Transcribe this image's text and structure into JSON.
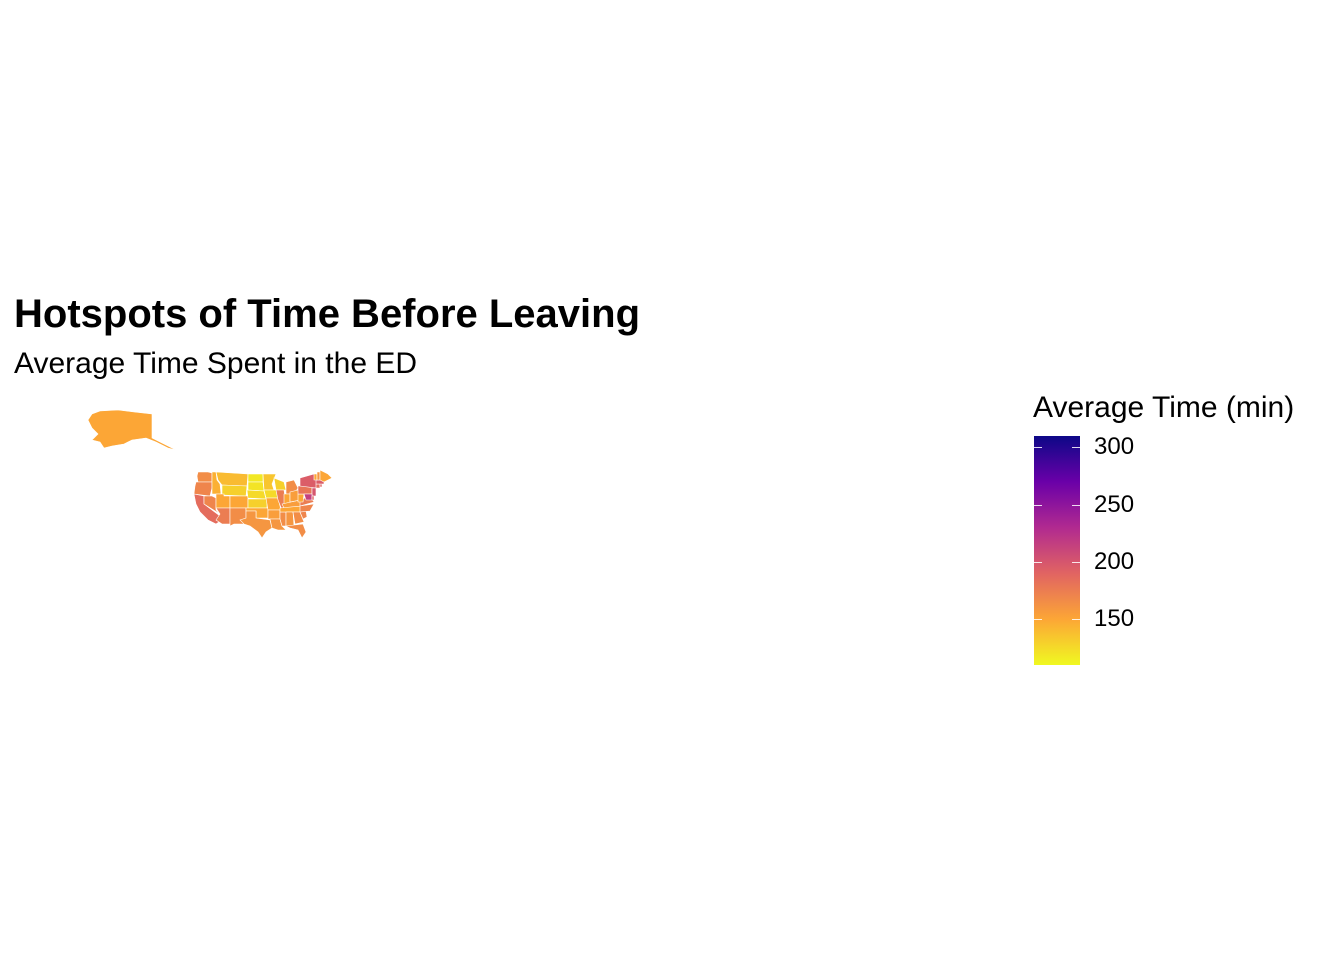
{
  "chart_data": {
    "type": "choropleth",
    "title": "Hotspots of Time Before Leaving",
    "subtitle": "Average Time Spent in the ED",
    "legend": {
      "title": "Average Time (min)",
      "placement": "right",
      "min": 110,
      "max": 310,
      "ticks": [
        300,
        250,
        200,
        150
      ],
      "palette": [
        "#f0f921",
        "#fca636",
        "#e16462",
        "#b12a90",
        "#6a00a8",
        "#0d0887"
      ]
    },
    "regions": [
      {
        "name": "AK",
        "value": 150
      },
      {
        "name": "WA",
        "value": 165
      },
      {
        "name": "OR",
        "value": 170
      },
      {
        "name": "CA",
        "value": 185
      },
      {
        "name": "NV",
        "value": 170
      },
      {
        "name": "ID",
        "value": 145
      },
      {
        "name": "MT",
        "value": 140
      },
      {
        "name": "WY",
        "value": 130
      },
      {
        "name": "UT",
        "value": 150
      },
      {
        "name": "AZ",
        "value": 175
      },
      {
        "name": "CO",
        "value": 150
      },
      {
        "name": "NM",
        "value": 165
      },
      {
        "name": "ND",
        "value": 118
      },
      {
        "name": "SD",
        "value": 120
      },
      {
        "name": "NE",
        "value": 125
      },
      {
        "name": "KS",
        "value": 130
      },
      {
        "name": "OK",
        "value": 150
      },
      {
        "name": "TX",
        "value": 160
      },
      {
        "name": "MN",
        "value": 135
      },
      {
        "name": "IA",
        "value": 125
      },
      {
        "name": "MO",
        "value": 150
      },
      {
        "name": "AR",
        "value": 155
      },
      {
        "name": "LA",
        "value": 160
      },
      {
        "name": "WI",
        "value": 130
      },
      {
        "name": "IL",
        "value": 175
      },
      {
        "name": "MS",
        "value": 165
      },
      {
        "name": "MI",
        "value": 165
      },
      {
        "name": "IN",
        "value": 150
      },
      {
        "name": "KY",
        "value": 155
      },
      {
        "name": "TN",
        "value": 150
      },
      {
        "name": "AL",
        "value": 160
      },
      {
        "name": "OH",
        "value": 155
      },
      {
        "name": "GA",
        "value": 165
      },
      {
        "name": "FL",
        "value": 165
      },
      {
        "name": "SC",
        "value": 170
      },
      {
        "name": "NC",
        "value": 170
      },
      {
        "name": "VA",
        "value": 175
      },
      {
        "name": "WV",
        "value": 150
      },
      {
        "name": "PA",
        "value": 180
      },
      {
        "name": "NY",
        "value": 195
      },
      {
        "name": "NJ",
        "value": 200
      },
      {
        "name": "MD",
        "value": 215
      },
      {
        "name": "DE",
        "value": 190
      },
      {
        "name": "CT",
        "value": 185
      },
      {
        "name": "RI",
        "value": 190
      },
      {
        "name": "MA",
        "value": 195
      },
      {
        "name": "VT",
        "value": 150
      },
      {
        "name": "NH",
        "value": 160
      },
      {
        "name": "ME",
        "value": 150
      }
    ]
  }
}
